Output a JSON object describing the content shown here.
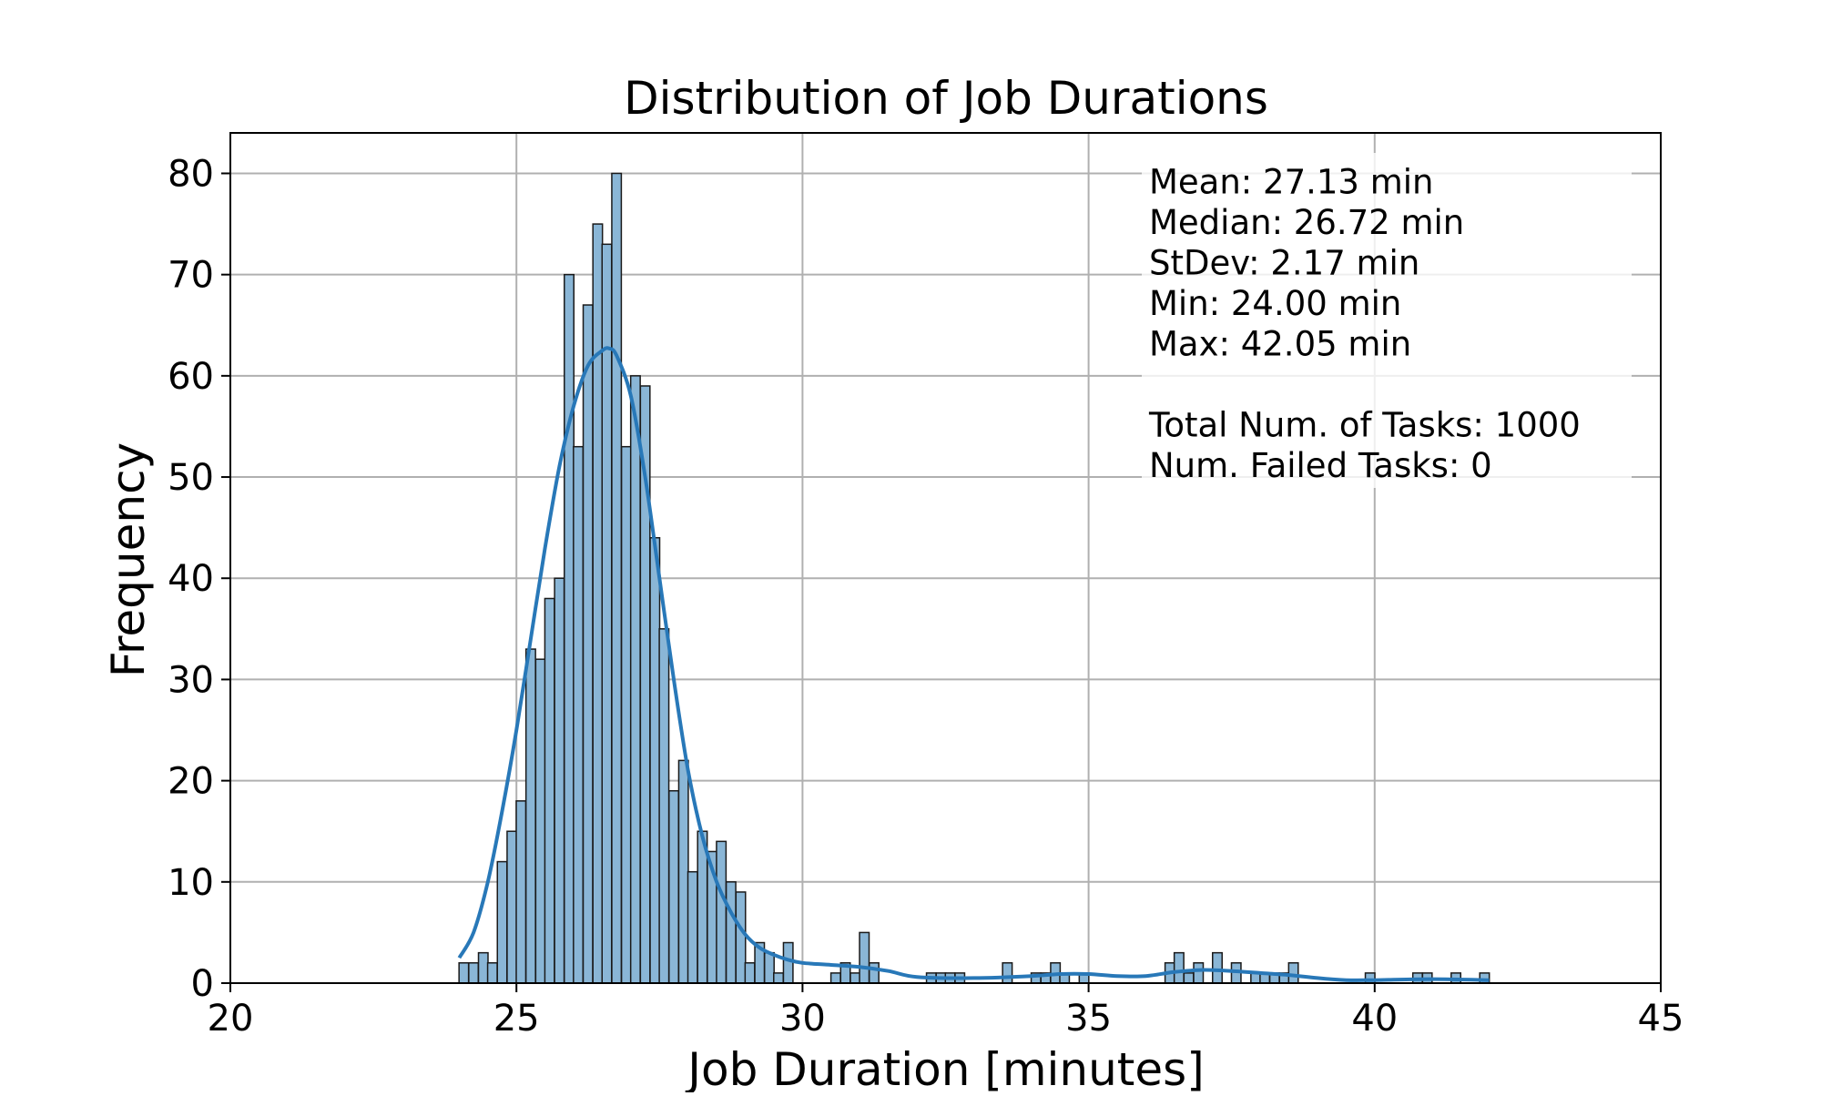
{
  "chart_data": {
    "type": "bar",
    "title": "Distribution of Job Durations",
    "xlabel": "Job Duration [minutes]",
    "ylabel": "Frequency",
    "xlim": [
      20,
      45
    ],
    "ylim": [
      0,
      84
    ],
    "xticks": [
      "20",
      "25",
      "30",
      "35",
      "40",
      "45"
    ],
    "yticks": [
      "0",
      "10",
      "20",
      "30",
      "40",
      "50",
      "60",
      "70",
      "80"
    ],
    "grid": true,
    "bin_width": 0.1667,
    "bar_color": "#8ab6d6",
    "bar_edge_color": "#1a1a1a",
    "kde_color": "#2878b8",
    "bins": [
      {
        "x": 24.08,
        "count": 2
      },
      {
        "x": 24.25,
        "count": 2
      },
      {
        "x": 24.42,
        "count": 3
      },
      {
        "x": 24.58,
        "count": 2
      },
      {
        "x": 24.75,
        "count": 12
      },
      {
        "x": 24.92,
        "count": 15
      },
      {
        "x": 25.08,
        "count": 18
      },
      {
        "x": 25.25,
        "count": 33
      },
      {
        "x": 25.42,
        "count": 32
      },
      {
        "x": 25.58,
        "count": 38
      },
      {
        "x": 25.75,
        "count": 40
      },
      {
        "x": 25.92,
        "count": 70
      },
      {
        "x": 26.08,
        "count": 53
      },
      {
        "x": 26.25,
        "count": 67
      },
      {
        "x": 26.42,
        "count": 75
      },
      {
        "x": 26.58,
        "count": 73
      },
      {
        "x": 26.75,
        "count": 80
      },
      {
        "x": 26.92,
        "count": 53
      },
      {
        "x": 27.08,
        "count": 60
      },
      {
        "x": 27.25,
        "count": 59
      },
      {
        "x": 27.42,
        "count": 44
      },
      {
        "x": 27.58,
        "count": 35
      },
      {
        "x": 27.75,
        "count": 19
      },
      {
        "x": 27.92,
        "count": 22
      },
      {
        "x": 28.08,
        "count": 11
      },
      {
        "x": 28.25,
        "count": 15
      },
      {
        "x": 28.42,
        "count": 13
      },
      {
        "x": 28.58,
        "count": 14
      },
      {
        "x": 28.75,
        "count": 10
      },
      {
        "x": 28.92,
        "count": 9
      },
      {
        "x": 29.08,
        "count": 2
      },
      {
        "x": 29.25,
        "count": 4
      },
      {
        "x": 29.42,
        "count": 3
      },
      {
        "x": 29.58,
        "count": 1
      },
      {
        "x": 29.75,
        "count": 4
      },
      {
        "x": 30.58,
        "count": 1
      },
      {
        "x": 30.75,
        "count": 2
      },
      {
        "x": 30.92,
        "count": 1
      },
      {
        "x": 31.08,
        "count": 5
      },
      {
        "x": 31.25,
        "count": 2
      },
      {
        "x": 32.25,
        "count": 1
      },
      {
        "x": 32.42,
        "count": 1
      },
      {
        "x": 32.58,
        "count": 1
      },
      {
        "x": 32.75,
        "count": 1
      },
      {
        "x": 33.58,
        "count": 2
      },
      {
        "x": 34.08,
        "count": 1
      },
      {
        "x": 34.25,
        "count": 1
      },
      {
        "x": 34.42,
        "count": 2
      },
      {
        "x": 34.58,
        "count": 1
      },
      {
        "x": 34.92,
        "count": 1
      },
      {
        "x": 36.42,
        "count": 2
      },
      {
        "x": 36.58,
        "count": 3
      },
      {
        "x": 36.75,
        "count": 1
      },
      {
        "x": 36.92,
        "count": 2
      },
      {
        "x": 37.25,
        "count": 3
      },
      {
        "x": 37.58,
        "count": 2
      },
      {
        "x": 37.92,
        "count": 1
      },
      {
        "x": 38.08,
        "count": 1
      },
      {
        "x": 38.25,
        "count": 1
      },
      {
        "x": 38.42,
        "count": 1
      },
      {
        "x": 38.58,
        "count": 2
      },
      {
        "x": 39.92,
        "count": 1
      },
      {
        "x": 40.75,
        "count": 1
      },
      {
        "x": 40.92,
        "count": 1
      },
      {
        "x": 41.42,
        "count": 1
      },
      {
        "x": 41.92,
        "count": 1
      }
    ],
    "kde": {
      "x": [
        24.0,
        24.25,
        24.5,
        24.75,
        25.0,
        25.25,
        25.5,
        25.75,
        26.0,
        26.25,
        26.5,
        26.62,
        26.75,
        27.0,
        27.25,
        27.5,
        27.75,
        28.0,
        28.25,
        28.5,
        28.75,
        29.0,
        29.25,
        29.5,
        29.75,
        30.0,
        30.5,
        31.0,
        31.5,
        32.0,
        33.0,
        34.0,
        34.5,
        35.0,
        35.5,
        36.0,
        36.5,
        37.0,
        37.5,
        38.0,
        38.5,
        39.0,
        39.5,
        40.0,
        41.0,
        42.0
      ],
      "y": [
        2.5,
        5,
        10,
        17,
        25,
        34,
        43,
        51,
        57,
        61,
        62.5,
        62.7,
        62,
        58,
        50,
        40,
        30,
        21,
        14.5,
        10,
        7,
        4.8,
        3.5,
        2.8,
        2.3,
        2.0,
        1.8,
        1.6,
        1.2,
        0.6,
        0.5,
        0.7,
        0.9,
        0.9,
        0.7,
        0.7,
        1.1,
        1.3,
        1.2,
        1.0,
        0.8,
        0.5,
        0.3,
        0.3,
        0.4,
        0.3
      ]
    },
    "stats_box": {
      "lines": [
        "Mean: 27.13 min",
        "Median: 26.72 min",
        "StDev: 2.17 min",
        "Min: 24.00 min",
        "Max: 42.05 min",
        "",
        "Total Num. of Tasks: 1000",
        "Num. Failed Tasks: 0"
      ]
    }
  }
}
